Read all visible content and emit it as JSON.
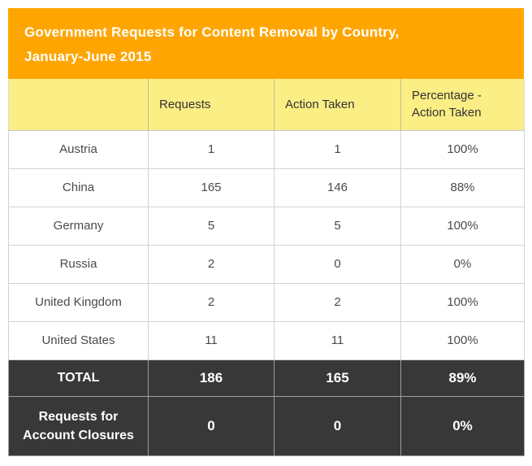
{
  "chart_data": {
    "type": "table",
    "title": "Government Requests for Content Removal by Country, January-June 2015",
    "columns": [
      "",
      "Requests",
      "Action Taken",
      "Percentage - Action Taken"
    ],
    "rows": [
      [
        "Austria",
        1,
        1,
        "100%"
      ],
      [
        "China",
        165,
        146,
        "88%"
      ],
      [
        "Germany",
        5,
        5,
        "100%"
      ],
      [
        "Russia",
        2,
        0,
        "0%"
      ],
      [
        "United Kingdom",
        2,
        2,
        "100%"
      ],
      [
        "United States",
        11,
        11,
        "100%"
      ]
    ],
    "total_row": [
      "TOTAL",
      186,
      165,
      "89%"
    ],
    "account_closures_row": [
      "Requests for Account Closures",
      0,
      0,
      "0%"
    ]
  },
  "title": {
    "line1": "Government Requests for Content Removal by Country,",
    "line2": "January-June 2015"
  },
  "colors": {
    "title_bg": "#FFA502",
    "title_text": "#FFFFFF",
    "header_bg": "#FAEE85",
    "header_text": "#333333",
    "row_bg": "#FFFFFF",
    "row_text": "#4A4A4A",
    "summary_bg": "#383838",
    "summary_text": "#FFFFFF",
    "border_light": "#D2D2D2",
    "border_dark": "#9E9E9E"
  }
}
